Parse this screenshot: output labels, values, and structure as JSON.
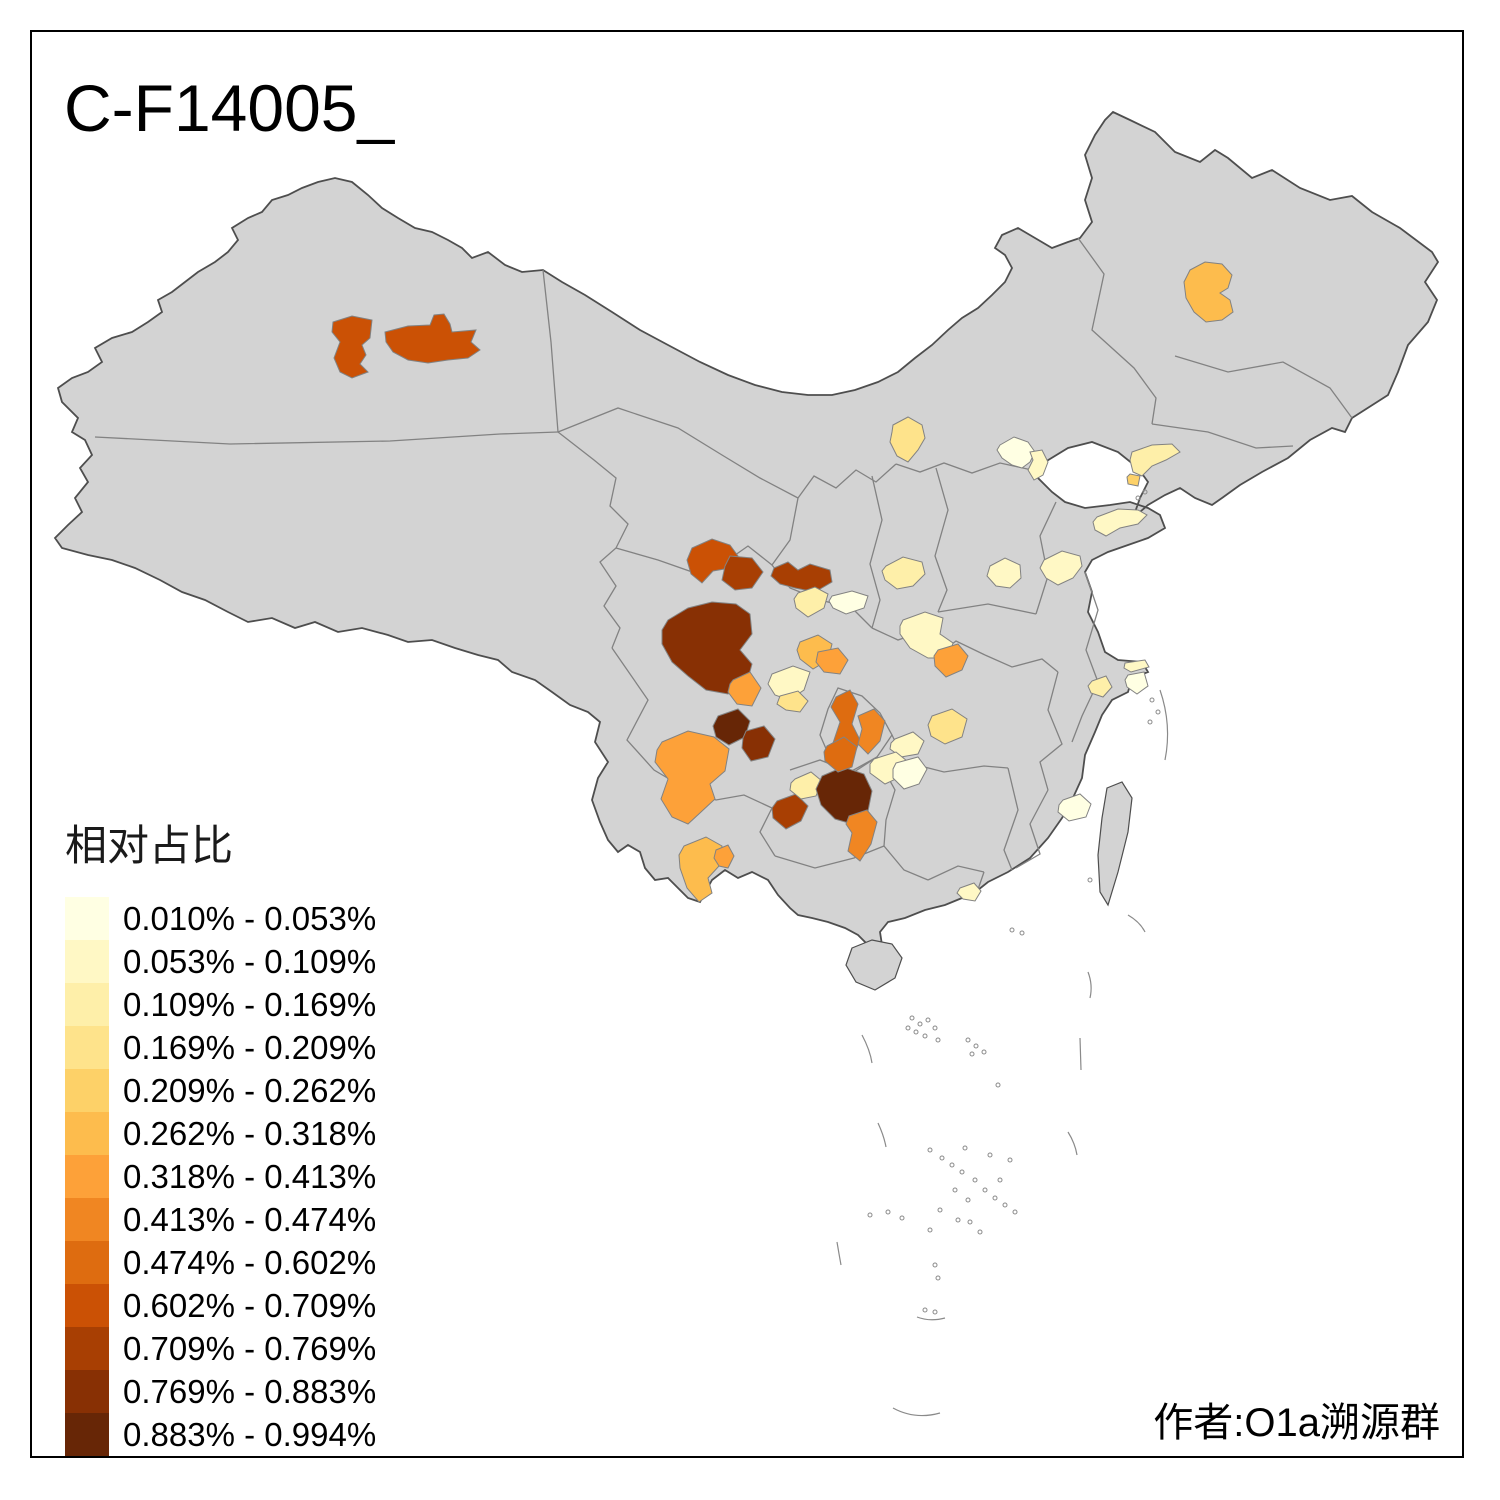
{
  "frame": {
    "title": "C-F14005_",
    "author": "作者:O1a溯源群"
  },
  "legend": {
    "title": "相对占比",
    "bins": [
      {
        "label": "0.010% - 0.053%",
        "color": "#FFFFE3"
      },
      {
        "label": "0.053% - 0.109%",
        "color": "#FFF8C5"
      },
      {
        "label": "0.109% - 0.169%",
        "color": "#FEEFA9"
      },
      {
        "label": "0.169% - 0.209%",
        "color": "#FEE38B"
      },
      {
        "label": "0.209% - 0.262%",
        "color": "#FDD168"
      },
      {
        "label": "0.262% - 0.318%",
        "color": "#FDBC4D"
      },
      {
        "label": "0.318% - 0.413%",
        "color": "#FDA139"
      },
      {
        "label": "0.413% - 0.474%",
        "color": "#F08622"
      },
      {
        "label": "0.474% - 0.602%",
        "color": "#DE6C10"
      },
      {
        "label": "0.602% - 0.709%",
        "color": "#CB5105"
      },
      {
        "label": "0.709% - 0.769%",
        "color": "#A83F03"
      },
      {
        "label": "0.769% - 0.883%",
        "color": "#883004"
      },
      {
        "label": "0.883% - 0.994%",
        "color": "#672606"
      }
    ]
  },
  "map": {
    "land_color": "#D3D3D3",
    "country_border_color": "#4E4E4E",
    "province_border_color": "#828282",
    "sea_color": "#FFFFFF",
    "region_bins": {
      "xinjiang-tacheng-w": 10,
      "xinjiang-tacheng-e": 10,
      "heilongjiang-suihua": 6,
      "neimenggu-baotou": 4,
      "beijing": 1,
      "beijing-east": 2,
      "liaoning-dalian": 3,
      "dalian-spot": 5,
      "shandong-penglai": 2,
      "shandong-weifang": 2,
      "henan-puyang": 2,
      "shanxi-changzhi": 3,
      "gansu-gannan-w": 10,
      "gansu-gannan-e": 11,
      "gansu-tianshui": 11,
      "shaanxi-baoji": 3,
      "shaanxi-xian": 1,
      "henan-luoyang": 2,
      "henan-nanyang": 7,
      "sichuan-aba": 12,
      "sichuan-mianyang": 7,
      "sichuan-deyang": 6,
      "sichuan-bazhong": 7,
      "sichuan-suining": 2,
      "sichuan-neijiang": 4,
      "chongqing-ne": 9,
      "chongqing-e": 8,
      "hubei-xiangyang": 4,
      "hubei-jingmen": 2,
      "jiangsu-changzhou": 3,
      "shanghai-n": 2,
      "shanghai": 1,
      "fujian-fuzhou": 1,
      "sichuan-leshan": 13,
      "sichuan-yibin": 12,
      "sichuan-liangshan": 7,
      "yunnan-kunming": 6,
      "yunnan-qujing": 7,
      "guizhou-liupanshui": 11,
      "guizhou-anshun": 3,
      "guizhou-zunyi": 13,
      "guizhou-tongren": 9,
      "guizhou-qiandongnan": 8,
      "hunan-huaihua": 2,
      "hunan-xiangxi": 1,
      "guangdong-jiangmen": 2
    }
  }
}
